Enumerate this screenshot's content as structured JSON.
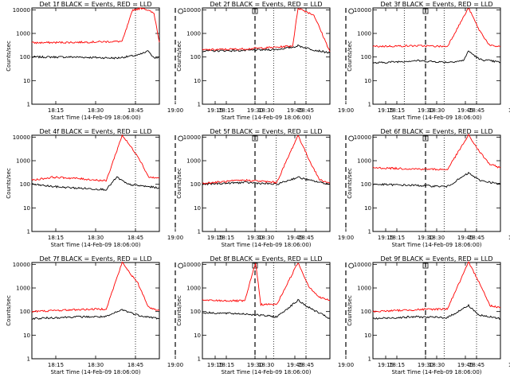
{
  "figure": {
    "xlabel": "Start Time (14-Feb-09 18:06:00)",
    "ylabel": "Counts/sec",
    "x_ticks": [
      "18:15",
      "18:30",
      "18:45",
      "19:00",
      "19:15",
      "19:30",
      "19:45"
    ],
    "y_ticks": [
      "1",
      "10",
      "100",
      "1000",
      "10000"
    ],
    "colors": {
      "events": "#000000",
      "lld": "#ff0000"
    }
  },
  "chart_data": [
    {
      "type": "line",
      "title": "Det 1f BLACK = Events, RED = LLD",
      "scale": "log",
      "ylim": [
        1,
        12000
      ],
      "x_minutes_after_1806": [
        0,
        48
      ],
      "dotted_vlines": [
        "18:45",
        "19:37"
      ],
      "dashed_vlines": [
        "19:00",
        "19:30"
      ],
      "markers": [
        {
          "shape": "circle",
          "label": "",
          "at": "19:02"
        },
        {
          "shape": "square",
          "label": "",
          "at": "19:30"
        }
      ],
      "series": [
        {
          "name": "Events",
          "values": [
            [
              0,
              100
            ],
            [
              8,
              100
            ],
            [
              16,
              100
            ],
            [
              32,
              90
            ],
            [
              40,
              120
            ],
            [
              44,
              180
            ],
            [
              46,
              90
            ],
            [
              48,
              100
            ]
          ]
        },
        {
          "name": "LLD",
          "values": [
            [
              0,
              400
            ],
            [
              16,
              420
            ],
            [
              34,
              460
            ],
            [
              38,
              10000
            ],
            [
              42,
              12000
            ],
            [
              46,
              7000
            ],
            [
              48,
              420
            ]
          ]
        }
      ]
    },
    {
      "type": "line",
      "title": "Det 2f BLACK = Events, RED = LLD",
      "scale": "log",
      "ylim": [
        1,
        12000
      ],
      "dotted_vlines": [
        "18:45",
        "19:22",
        "19:37"
      ],
      "dashed_vlines": [
        "19:00",
        "19:30"
      ],
      "series": [
        {
          "name": "Events",
          "values": [
            [
              0,
              180
            ],
            [
              16,
              190
            ],
            [
              28,
              210
            ],
            [
              34,
              260
            ],
            [
              36,
              300
            ],
            [
              42,
              200
            ],
            [
              48,
              150
            ]
          ]
        },
        {
          "name": "LLD",
          "values": [
            [
              0,
              200
            ],
            [
              16,
              220
            ],
            [
              28,
              260
            ],
            [
              34,
              300
            ],
            [
              36,
              12000
            ],
            [
              42,
              6000
            ],
            [
              48,
              170
            ]
          ]
        }
      ]
    },
    {
      "type": "line",
      "title": "Det 3f BLACK = Events, RED = LLD",
      "scale": "log",
      "ylim": [
        1,
        12000
      ],
      "dotted_vlines": [
        "18:45",
        "19:38"
      ],
      "dashed_vlines": [
        "19:00",
        "19:30"
      ],
      "series": [
        {
          "name": "Events",
          "values": [
            [
              0,
              55
            ],
            [
              16,
              70
            ],
            [
              28,
              60
            ],
            [
              34,
              70
            ],
            [
              36,
              180
            ],
            [
              40,
              80
            ],
            [
              48,
              60
            ]
          ]
        },
        {
          "name": "LLD",
          "values": [
            [
              0,
              280
            ],
            [
              16,
              300
            ],
            [
              28,
              280
            ],
            [
              36,
              12000
            ],
            [
              40,
              1400
            ],
            [
              44,
              300
            ],
            [
              48,
              280
            ]
          ]
        }
      ]
    },
    {
      "type": "line",
      "title": "Det 4f BLACK = Events, RED = LLD",
      "scale": "log",
      "ylim": [
        1,
        12000
      ],
      "dotted_vlines": [
        "18:45",
        "19:38"
      ],
      "dashed_vlines": [
        "19:00",
        "19:30"
      ],
      "series": [
        {
          "name": "Events",
          "values": [
            [
              0,
              100
            ],
            [
              8,
              80
            ],
            [
              16,
              70
            ],
            [
              28,
              60
            ],
            [
              32,
              200
            ],
            [
              36,
              100
            ],
            [
              48,
              70
            ]
          ]
        },
        {
          "name": "LLD",
          "values": [
            [
              0,
              150
            ],
            [
              8,
              200
            ],
            [
              16,
              180
            ],
            [
              28,
              140
            ],
            [
              34,
              12000
            ],
            [
              40,
              1500
            ],
            [
              44,
              200
            ],
            [
              48,
              180
            ]
          ]
        }
      ]
    },
    {
      "type": "line",
      "title": "Det 5f BLACK = Events, RED = LLD",
      "scale": "log",
      "ylim": [
        1,
        12000
      ],
      "dotted_vlines": [
        "18:45",
        "19:37"
      ],
      "dashed_vlines": [
        "19:00",
        "19:30"
      ],
      "series": [
        {
          "name": "Events",
          "values": [
            [
              0,
              100
            ],
            [
              16,
              120
            ],
            [
              28,
              100
            ],
            [
              36,
              200
            ],
            [
              40,
              150
            ],
            [
              48,
              100
            ]
          ]
        },
        {
          "name": "LLD",
          "values": [
            [
              0,
              110
            ],
            [
              16,
              150
            ],
            [
              28,
              120
            ],
            [
              36,
              12000
            ],
            [
              40,
              1200
            ],
            [
              44,
              160
            ],
            [
              48,
              110
            ]
          ]
        }
      ]
    },
    {
      "type": "line",
      "title": "Det 6f BLACK = Events, RED = LLD",
      "scale": "log",
      "ylim": [
        1,
        12000
      ],
      "dotted_vlines": [
        "18:45",
        "19:37"
      ],
      "dashed_vlines": [
        "19:00",
        "19:30"
      ],
      "series": [
        {
          "name": "Events",
          "values": [
            [
              0,
              100
            ],
            [
              16,
              90
            ],
            [
              28,
              80
            ],
            [
              36,
              300
            ],
            [
              40,
              150
            ],
            [
              48,
              100
            ]
          ]
        },
        {
          "name": "LLD",
          "values": [
            [
              0,
              500
            ],
            [
              16,
              450
            ],
            [
              28,
              420
            ],
            [
              36,
              12000
            ],
            [
              40,
              2500
            ],
            [
              44,
              700
            ],
            [
              48,
              500
            ]
          ]
        }
      ]
    },
    {
      "type": "line",
      "title": "Det 7f BLACK = Events, RED = LLD",
      "scale": "log",
      "ylim": [
        1,
        12000
      ],
      "dotted_vlines": [
        "18:45",
        "19:37"
      ],
      "dashed_vlines": [
        "19:00",
        "19:30"
      ],
      "series": [
        {
          "name": "Events",
          "values": [
            [
              0,
              50
            ],
            [
              16,
              60
            ],
            [
              28,
              60
            ],
            [
              34,
              120
            ],
            [
              40,
              70
            ],
            [
              48,
              50
            ]
          ]
        },
        {
          "name": "LLD",
          "values": [
            [
              0,
              100
            ],
            [
              16,
              120
            ],
            [
              28,
              130
            ],
            [
              34,
              12000
            ],
            [
              40,
              1500
            ],
            [
              44,
              150
            ],
            [
              48,
              110
            ]
          ]
        }
      ]
    },
    {
      "type": "line",
      "title": "Det 8f BLACK = Events, RED = LLD",
      "scale": "log",
      "ylim": [
        1,
        12000
      ],
      "dotted_vlines": [
        "18:45",
        "19:37"
      ],
      "dashed_vlines": [
        "19:00",
        "19:30"
      ],
      "series": [
        {
          "name": "Events",
          "values": [
            [
              0,
              90
            ],
            [
              16,
              80
            ],
            [
              28,
              60
            ],
            [
              36,
              300
            ],
            [
              40,
              150
            ],
            [
              48,
              50
            ]
          ]
        },
        {
          "name": "LLD",
          "values": [
            [
              0,
              300
            ],
            [
              16,
              280
            ],
            [
              20,
              12000
            ],
            [
              22,
              200
            ],
            [
              28,
              200
            ],
            [
              36,
              12000
            ],
            [
              40,
              1200
            ],
            [
              44,
              400
            ],
            [
              48,
              300
            ]
          ]
        }
      ]
    },
    {
      "type": "line",
      "title": "Det 9f BLACK = Events, RED = LLD",
      "scale": "log",
      "ylim": [
        1,
        12000
      ],
      "dotted_vlines": [
        "18:45",
        "19:37"
      ],
      "dashed_vlines": [
        "19:00",
        "19:30"
      ],
      "series": [
        {
          "name": "Events",
          "values": [
            [
              0,
              50
            ],
            [
              16,
              60
            ],
            [
              28,
              55
            ],
            [
              36,
              180
            ],
            [
              40,
              70
            ],
            [
              48,
              50
            ]
          ]
        },
        {
          "name": "LLD",
          "values": [
            [
              0,
              100
            ],
            [
              16,
              120
            ],
            [
              28,
              130
            ],
            [
              36,
              12000
            ],
            [
              40,
              1800
            ],
            [
              44,
              180
            ],
            [
              48,
              150
            ]
          ]
        }
      ]
    }
  ]
}
